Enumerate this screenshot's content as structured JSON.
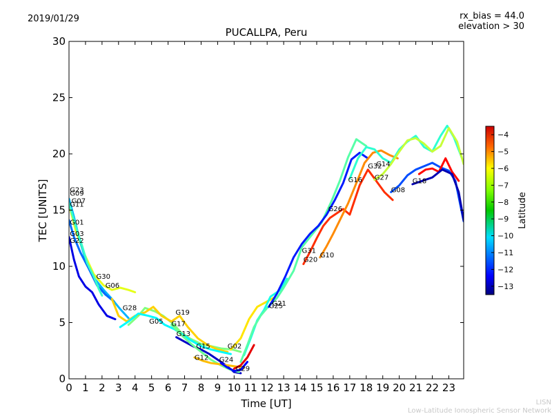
{
  "header": {
    "date": "2019/01/29",
    "rx_bias": "rx_bias = 44.0",
    "elevation": "elevation > 30"
  },
  "footer": {
    "line1": "LISN",
    "line2": "Low-Latitude Ionospheric Sensor Network"
  },
  "chart_data": {
    "type": "line",
    "title": "PUCALLPA, Peru",
    "xlabel": "Time [UT]",
    "ylabel": "TEC [UNITS]",
    "xlim": [
      0,
      23.9
    ],
    "ylim": [
      0,
      30
    ],
    "x_ticks": [
      0,
      1,
      2,
      3,
      4,
      5,
      6,
      7,
      8,
      9,
      10,
      11,
      12,
      13,
      14,
      15,
      16,
      17,
      18,
      19,
      20,
      21,
      22,
      23
    ],
    "y_ticks": [
      0,
      5,
      10,
      15,
      20,
      25,
      30
    ],
    "grid": false,
    "colorbar": {
      "label": "Latitude",
      "min": -13.5,
      "max": -3.5,
      "ticks": [
        -4,
        -5,
        -6,
        -7,
        -8,
        -9,
        -10,
        -11,
        -12,
        -13
      ],
      "colormap": "jet"
    },
    "satellite_labels": [
      {
        "name": "G23",
        "x": 0.05,
        "y": 16.6
      },
      {
        "name": "G09",
        "x": 0.05,
        "y": 16.3
      },
      {
        "name": "G07",
        "x": 0.15,
        "y": 15.6
      },
      {
        "name": "G11",
        "x": 0.05,
        "y": 15.3
      },
      {
        "name": "G01",
        "x": 0.05,
        "y": 13.7
      },
      {
        "name": "G03",
        "x": 0.05,
        "y": 12.7
      },
      {
        "name": "G22",
        "x": 0.05,
        "y": 12.1
      },
      {
        "name": "G30",
        "x": 1.65,
        "y": 8.9
      },
      {
        "name": "G06",
        "x": 2.2,
        "y": 8.1
      },
      {
        "name": "G28",
        "x": 3.25,
        "y": 6.1
      },
      {
        "name": "G19",
        "x": 6.45,
        "y": 5.7
      },
      {
        "name": "G05",
        "x": 4.85,
        "y": 4.9
      },
      {
        "name": "G17",
        "x": 6.2,
        "y": 4.7
      },
      {
        "name": "G13",
        "x": 6.5,
        "y": 3.8
      },
      {
        "name": "G15",
        "x": 7.7,
        "y": 2.7
      },
      {
        "name": "G02",
        "x": 9.6,
        "y": 2.7
      },
      {
        "name": "G12",
        "x": 7.6,
        "y": 1.7
      },
      {
        "name": "G24",
        "x": 9.1,
        "y": 1.5
      },
      {
        "name": "G29",
        "x": 10.1,
        "y": 0.7
      },
      {
        "name": "G21",
        "x": 12.3,
        "y": 6.5
      },
      {
        "name": "G25",
        "x": 12.1,
        "y": 6.3
      },
      {
        "name": "G31",
        "x": 14.1,
        "y": 11.2
      },
      {
        "name": "G20",
        "x": 14.2,
        "y": 10.4
      },
      {
        "name": "G10",
        "x": 15.2,
        "y": 10.8
      },
      {
        "name": "G26",
        "x": 15.7,
        "y": 14.9
      },
      {
        "name": "G16",
        "x": 16.9,
        "y": 17.5
      },
      {
        "name": "G32",
        "x": 18.1,
        "y": 18.7
      },
      {
        "name": "G14",
        "x": 18.6,
        "y": 18.9
      },
      {
        "name": "G27",
        "x": 18.5,
        "y": 17.7
      },
      {
        "name": "G08",
        "x": 19.5,
        "y": 16.6
      },
      {
        "name": "G18",
        "x": 20.8,
        "y": 17.4
      }
    ],
    "series": [
      {
        "lat": -7.5,
        "x": [
          0,
          0.4,
          0.9,
          1.5,
          2.1,
          2.6,
          3.1,
          3.6,
          4.0
        ],
        "y": [
          15.5,
          13.2,
          11.2,
          9.3,
          8.3,
          7.9,
          8.1,
          7.9,
          7.7
        ]
      },
      {
        "lat": -8.5,
        "x": [
          3.6,
          4.2,
          4.6,
          5.2,
          5.7,
          6.3,
          6.8,
          7.3,
          8.0,
          8.6,
          9.2,
          9.9,
          10.4
        ],
        "y": [
          4.8,
          5.6,
          6.3,
          6.0,
          5.6,
          4.9,
          4.1,
          3.6,
          3.1,
          2.9,
          2.7,
          2.6,
          2.4
        ]
      },
      {
        "lat": -10.5,
        "x": [
          0,
          0.3,
          0.6,
          1.0,
          1.5,
          2.1,
          2.6,
          3.1,
          3.6
        ],
        "y": [
          16.0,
          14.4,
          12.6,
          10.6,
          9.0,
          7.9,
          7.1,
          6.2,
          5.4
        ]
      },
      {
        "lat": -12.5,
        "x": [
          0,
          0.3,
          0.6,
          1.0,
          1.4,
          1.8,
          2.3,
          2.8
        ],
        "y": [
          12.6,
          10.6,
          9.1,
          8.2,
          7.7,
          6.6,
          5.6,
          5.3
        ]
      },
      {
        "lat": -11.2,
        "x": [
          0,
          0.3,
          0.7,
          1.2,
          1.7,
          2.2,
          2.7
        ],
        "y": [
          14.1,
          12.6,
          11.2,
          9.8,
          8.3,
          7.5,
          6.9
        ]
      },
      {
        "lat": -9.2,
        "x": [
          0,
          0.4,
          0.8,
          1.1,
          1.5,
          1.8,
          2.0
        ],
        "y": [
          15.6,
          13.6,
          11.8,
          10.3,
          9.1,
          8.0,
          7.4
        ]
      },
      {
        "lat": -6.8,
        "x": [
          2.6,
          3.0,
          3.5,
          4.0,
          4.6,
          5.1,
          5.6,
          6.2,
          6.7,
          7.2,
          7.8,
          8.4,
          9.0,
          9.6
        ],
        "y": [
          7.1,
          5.6,
          5.1,
          5.6,
          5.9,
          6.4,
          5.6,
          5.1,
          5.6,
          4.6,
          3.6,
          3.0,
          2.6,
          2.4
        ]
      },
      {
        "lat": -9.8,
        "x": [
          3.1,
          3.6,
          4.2,
          4.8,
          5.3,
          5.8,
          6.4,
          6.9,
          7.4,
          8.0,
          8.6,
          9.2,
          9.8
        ],
        "y": [
          4.6,
          5.1,
          5.8,
          5.6,
          5.4,
          4.8,
          4.4,
          3.9,
          3.4,
          2.9,
          2.6,
          2.4,
          2.2
        ]
      },
      {
        "lat": -12.8,
        "x": [
          6.5,
          7.0,
          7.5,
          8.0,
          8.5,
          9.0,
          9.5,
          10.0,
          10.4
        ],
        "y": [
          3.7,
          3.3,
          2.9,
          2.6,
          2.2,
          1.7,
          1.2,
          0.6,
          0.5
        ]
      },
      {
        "lat": -8.7,
        "x": [
          6.2,
          6.8,
          7.4,
          8.0,
          8.6,
          9.2,
          9.8,
          10.3
        ],
        "y": [
          4.8,
          3.9,
          3.1,
          2.4,
          1.7,
          1.2,
          0.8,
          0.6
        ]
      },
      {
        "lat": -6.6,
        "x": [
          7.6,
          8.1,
          8.6,
          9.1,
          9.6,
          10.1,
          10.6
        ],
        "y": [
          1.9,
          1.6,
          1.4,
          1.3,
          1.2,
          1.1,
          1.0
        ]
      },
      {
        "lat": -12.2,
        "x": [
          9.2,
          9.6,
          10.0,
          10.4,
          10.8
        ],
        "y": [
          1.4,
          1.0,
          0.7,
          0.8,
          1.5
        ]
      },
      {
        "lat": -4.5,
        "x": [
          10.0,
          10.4,
          10.8,
          11.2
        ],
        "y": [
          0.9,
          1.2,
          1.9,
          3.0
        ]
      },
      {
        "lat": -7.0,
        "x": [
          9.8,
          10.4,
          10.9,
          11.4,
          11.9,
          12.4
        ],
        "y": [
          2.6,
          3.6,
          5.3,
          6.4,
          6.8,
          7.2
        ]
      },
      {
        "lat": -9.5,
        "x": [
          10.6,
          11.0,
          11.4,
          11.8,
          12.2,
          12.8,
          13.2
        ],
        "y": [
          2.1,
          3.6,
          5.2,
          6.1,
          7.3,
          7.9,
          8.9
        ]
      },
      {
        "lat": -8.9,
        "x": [
          10.4,
          10.8,
          11.2,
          11.6,
          12.0,
          12.6,
          13.0,
          13.6,
          14.1,
          14.7,
          15.3,
          15.9,
          16.4,
          16.9,
          17.4,
          18.0
        ],
        "y": [
          1.5,
          3.0,
          4.6,
          5.6,
          6.3,
          7.2,
          8.1,
          9.6,
          11.7,
          12.8,
          13.9,
          15.8,
          17.6,
          19.7,
          21.3,
          20.7
        ]
      },
      {
        "lat": -12.0,
        "x": [
          12.1,
          12.6,
          13.1,
          13.6,
          14.1,
          14.6,
          15.1,
          15.6,
          16.1,
          16.6,
          17.1,
          17.6,
          18.1
        ],
        "y": [
          6.4,
          7.6,
          9.1,
          10.8,
          12.0,
          12.9,
          13.6,
          14.6,
          15.9,
          17.4,
          19.5,
          20.1,
          19.6
        ]
      },
      {
        "lat": -5.2,
        "x": [
          14.2,
          14.6,
          15.0,
          15.4,
          15.8,
          16.2,
          16.6,
          17.0,
          17.6,
          18.1,
          18.6,
          19.1,
          19.6
        ],
        "y": [
          10.2,
          11.3,
          12.5,
          13.6,
          14.3,
          14.7,
          15.1,
          14.6,
          17.2,
          18.6,
          17.6,
          16.6,
          15.9
        ]
      },
      {
        "lat": -6.1,
        "x": [
          15.2,
          15.6,
          16.0,
          16.4,
          16.9,
          17.4,
          17.9,
          18.4,
          18.9,
          19.4,
          19.9
        ],
        "y": [
          10.8,
          11.8,
          12.9,
          14.1,
          15.6,
          17.4,
          19.2,
          20.1,
          20.3,
          19.9,
          19.6
        ]
      },
      {
        "lat": -9.3,
        "x": [
          17.0,
          17.5,
          18.0,
          18.5,
          19.0,
          19.5,
          20.0,
          20.5,
          21.0,
          21.5,
          22.0,
          22.5,
          22.9,
          23.3,
          23.8
        ],
        "y": [
          17.8,
          19.6,
          20.6,
          20.4,
          19.6,
          19.2,
          20.4,
          21.1,
          21.6,
          20.6,
          20.2,
          21.6,
          22.5,
          21.5,
          19.6
        ]
      },
      {
        "lat": -7.8,
        "x": [
          18.5,
          19.0,
          19.5,
          20.0,
          20.5,
          21.0,
          21.5,
          22.0,
          22.5,
          23.0,
          23.5,
          23.9
        ],
        "y": [
          17.7,
          18.2,
          19.1,
          20.2,
          21.2,
          21.4,
          20.9,
          20.2,
          20.7,
          22.3,
          21.1,
          19.1
        ]
      },
      {
        "lat": -11.5,
        "x": [
          19.5,
          20.0,
          20.5,
          21.0,
          21.5,
          22.0,
          22.5,
          23.0,
          23.4,
          23.9
        ],
        "y": [
          16.6,
          17.2,
          18.1,
          18.6,
          18.9,
          19.2,
          18.8,
          18.5,
          17.6,
          14.0
        ]
      },
      {
        "lat": -4.8,
        "x": [
          21.2,
          21.6,
          22.0,
          22.4,
          22.8,
          23.2,
          23.6
        ],
        "y": [
          18.2,
          18.6,
          18.7,
          18.4,
          19.6,
          18.4,
          17.6
        ]
      },
      {
        "lat": -13.0,
        "x": [
          20.8,
          21.4,
          22.0,
          22.6,
          23.2,
          23.6,
          23.9
        ],
        "y": [
          17.3,
          17.6,
          17.9,
          18.6,
          18.2,
          16.6,
          14.1
        ]
      }
    ]
  }
}
